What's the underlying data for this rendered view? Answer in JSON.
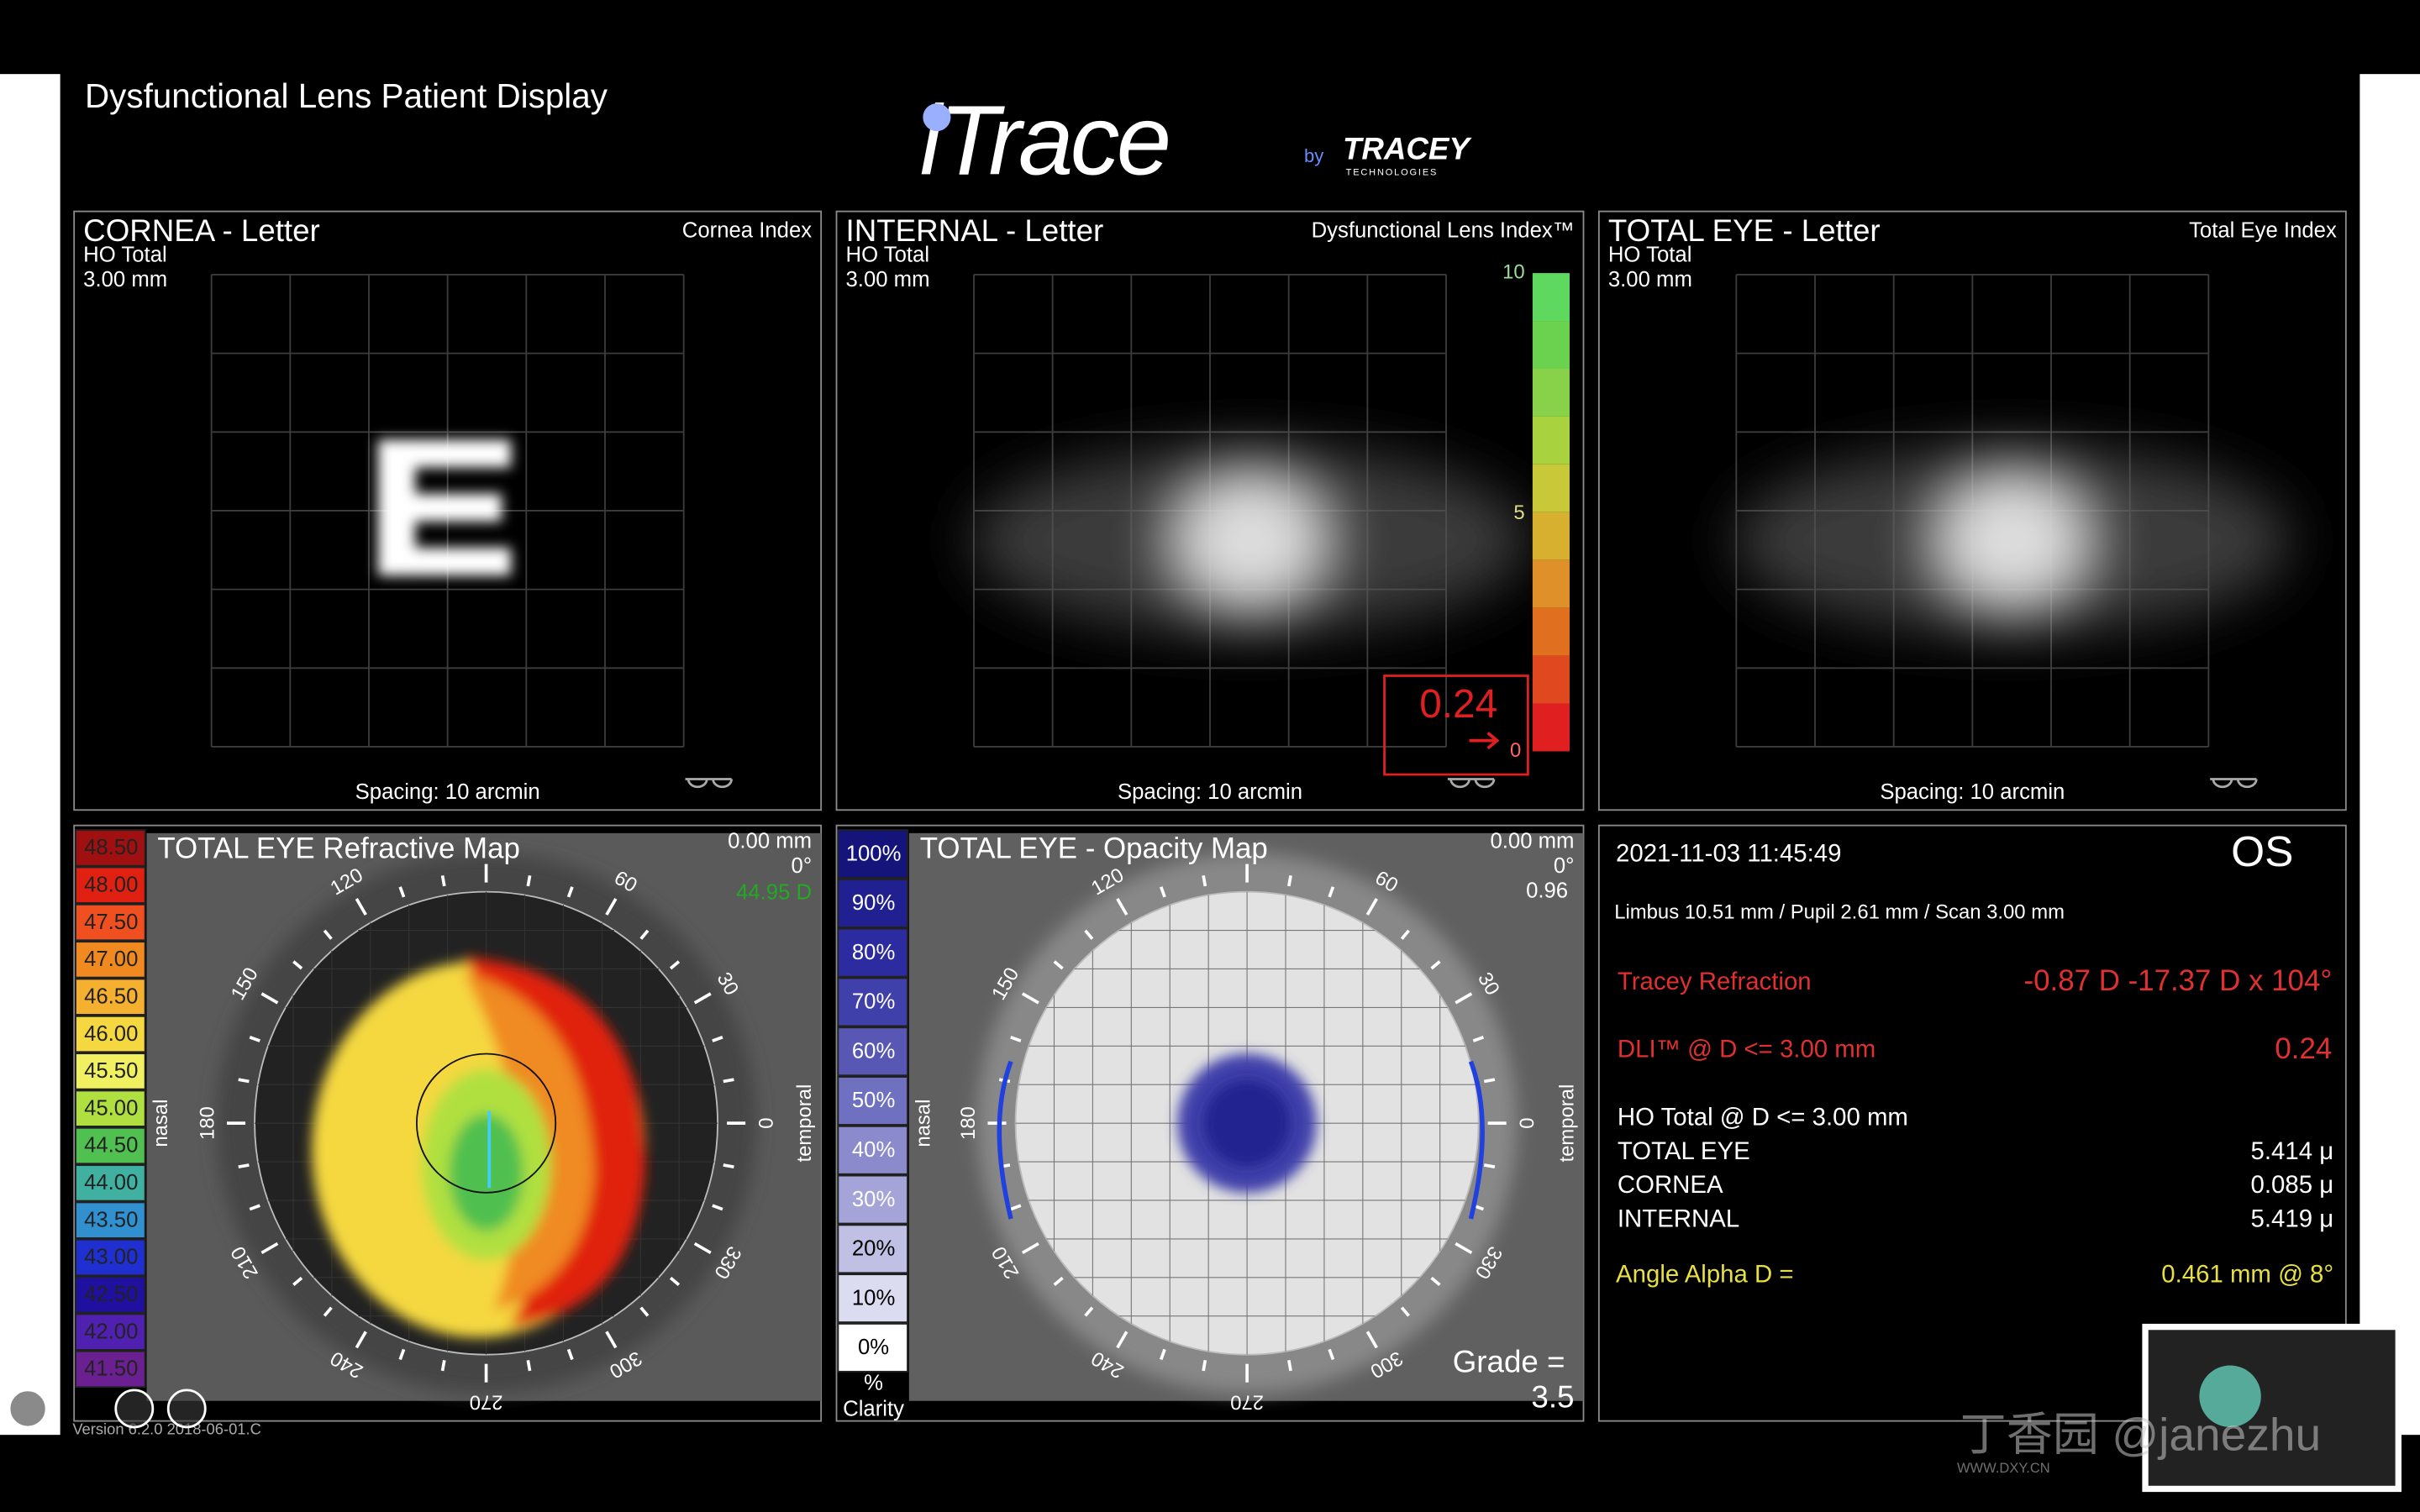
{
  "header": {
    "title": "Dysfunctional Lens Patient Display",
    "logo": "iTrace",
    "logo_by": "by",
    "brand": "TRACEY",
    "brand_sub": "TECHNOLOGIES"
  },
  "panels": [
    {
      "title": "CORNEA - Letter",
      "index": "Cornea Index",
      "metric": "HO Total",
      "diameter": "3.00 mm",
      "spacing": "Spacing:  10 arcmin"
    },
    {
      "title": "INTERNAL - Letter",
      "index": "Dysfunctional Lens Index™",
      "metric": "HO Total",
      "diameter": "3.00 mm",
      "spacing": "Spacing:  10 arcmin"
    },
    {
      "title": "TOTAL EYE - Letter",
      "index": "Total Eye Index",
      "metric": "HO Total",
      "diameter": "3.00 mm",
      "spacing": "Spacing:  10 arcmin"
    }
  ],
  "dli_scale": {
    "ticks": [
      "10",
      "5",
      "0"
    ],
    "value": "0.24",
    "colors": [
      "#5ed85e",
      "#6ad24e",
      "#88d24a",
      "#a8d23e",
      "#c8c838",
      "#d8b030",
      "#e09028",
      "#e07020",
      "#e04820",
      "#e02020"
    ]
  },
  "refractive_map": {
    "title": "TOTAL EYE  Refractive Map",
    "offset": "0.00 mm",
    "angle": "0°",
    "power": "44.95 D",
    "nasal": "nasal",
    "temporal": "temporal",
    "angles": [
      0,
      30,
      60,
      120,
      150,
      180,
      210,
      240,
      270,
      300,
      330
    ],
    "scale": [
      {
        "label": "48.50",
        "color": "#a01010"
      },
      {
        "label": "48.00",
        "color": "#e02010"
      },
      {
        "label": "47.50",
        "color": "#f05020"
      },
      {
        "label": "47.00",
        "color": "#f08a20"
      },
      {
        "label": "46.50",
        "color": "#f5b030"
      },
      {
        "label": "46.00",
        "color": "#f5d840"
      },
      {
        "label": "45.50",
        "color": "#f0f060"
      },
      {
        "label": "45.00",
        "color": "#b0e040"
      },
      {
        "label": "44.50",
        "color": "#50c050"
      },
      {
        "label": "44.00",
        "color": "#40b0a0"
      },
      {
        "label": "43.50",
        "color": "#3090d0"
      },
      {
        "label": "43.00",
        "color": "#2030d0"
      },
      {
        "label": "42.50",
        "color": "#2010a0"
      },
      {
        "label": "42.00",
        "color": "#5020b0"
      },
      {
        "label": "41.50",
        "color": "#6a2090"
      }
    ]
  },
  "opacity_map": {
    "title": "TOTAL EYE - Opacity Map",
    "offset": "0.00 mm",
    "angle": "0°",
    "value": "0.96",
    "nasal": "nasal",
    "temporal": "temporal",
    "angles": [
      0,
      30,
      60,
      120,
      150,
      180,
      210,
      240,
      270,
      300,
      330
    ],
    "scale": [
      {
        "label": "100%",
        "color": "#14147a"
      },
      {
        "label": "90%",
        "color": "#202090"
      },
      {
        "label": "80%",
        "color": "#2c2ca0"
      },
      {
        "label": "70%",
        "color": "#4040aa"
      },
      {
        "label": "60%",
        "color": "#5858b4"
      },
      {
        "label": "50%",
        "color": "#7070c0"
      },
      {
        "label": "40%",
        "color": "#8a8acc"
      },
      {
        "label": "30%",
        "color": "#a4a4d8"
      },
      {
        "label": "20%",
        "color": "#c0c0e4"
      },
      {
        "label": "10%",
        "color": "#dcdcf0"
      },
      {
        "label": "0%",
        "color": "#ffffff"
      }
    ],
    "unit": "%",
    "unit_label": "Clarity",
    "grade_label": "Grade =",
    "grade": "3.5"
  },
  "info": {
    "datetime": "2021-11-03  11:45:49",
    "eye": "OS",
    "measurements": "Limbus 10.51 mm  /  Pupil 2.61 mm  /  Scan 3.00 mm",
    "refraction_label": "Tracey Refraction",
    "refraction": "-0.87 D -17.37 D x 104°",
    "dli_label": "DLI™ @ D <= 3.00 mm",
    "dli": "0.24",
    "ho_label": "HO Total @ D <= 3.00 mm",
    "rows": [
      [
        "TOTAL EYE",
        "5.414 μ"
      ],
      [
        "CORNEA",
        "0.085 μ"
      ],
      [
        "INTERNAL",
        "5.419 μ"
      ]
    ],
    "alpha_label": "Angle Alpha  D =",
    "alpha": "0.461 mm @ 8°"
  },
  "footer": {
    "version": "Version 6.2.0 2018-06-01.C",
    "watermark": "丁香园 @janezhu",
    "watermark_url": "WWW.DXY.CN"
  }
}
